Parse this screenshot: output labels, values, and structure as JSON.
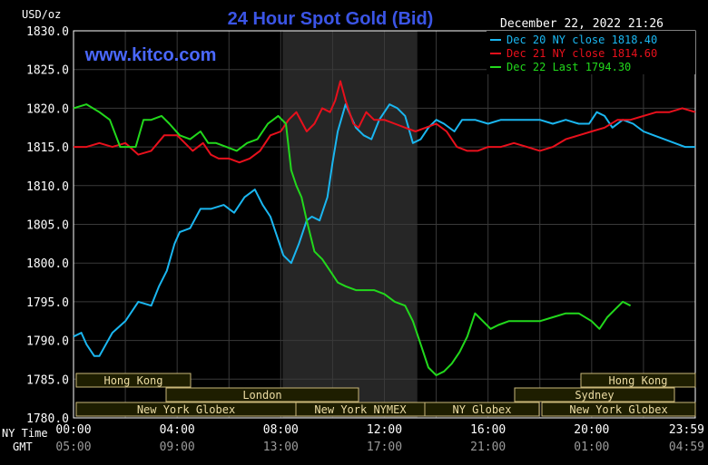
{
  "header": {
    "unit": "USD/oz",
    "title": "24 Hour Spot Gold (Bid)",
    "timestamp": "December 22, 2022 21:26",
    "website": "www.kitco.com"
  },
  "colors": {
    "background": "#000000",
    "title": "#3b55e6",
    "website": "#4a68ff",
    "text": "#ffffff",
    "grid": "#3a3a3a",
    "shade": "#262626",
    "market_fill": "#1e1e00",
    "market_border": "#c9b77a",
    "market_text": "#ecdca4"
  },
  "markets": {
    "row1": [
      "Hong Kong",
      "Hong Kong"
    ],
    "row2": [
      "London",
      "Sydney"
    ],
    "row3": [
      "New York Globex",
      "New York NYMEX",
      "NY Globex",
      "New York Globex"
    ]
  },
  "time_labels": {
    "ny_label": "NY Time",
    "gmt_label": "GMT"
  },
  "chart_data": {
    "type": "line",
    "title": "24 Hour Spot Gold (Bid)",
    "ylabel": "USD/oz",
    "ylim": [
      1780.0,
      1830.0
    ],
    "y_ticks": [
      "1830.0",
      "1825.0",
      "1820.0",
      "1815.0",
      "1810.0",
      "1805.0",
      "1800.0",
      "1795.0",
      "1790.0",
      "1785.0",
      "1780.0"
    ],
    "x_ticks_ny": [
      "00:00",
      "04:00",
      "08:00",
      "12:00",
      "16:00",
      "20:00",
      "23:59"
    ],
    "x_ticks_gmt": [
      "05:00",
      "09:00",
      "13:00",
      "17:00",
      "21:00",
      "01:00",
      "04:59"
    ],
    "xlim_hours": [
      0,
      24
    ],
    "grid": true,
    "legend_position": "top-right",
    "series": [
      {
        "name": "Dec 20 NY close 1818.40",
        "color": "#1ab6f0",
        "x": [
          0,
          0.3,
          0.5,
          0.8,
          1.0,
          1.5,
          2.0,
          2.5,
          3.0,
          3.3,
          3.6,
          3.9,
          4.1,
          4.5,
          4.9,
          5.3,
          5.8,
          6.2,
          6.6,
          7.0,
          7.3,
          7.6,
          7.9,
          8.1,
          8.4,
          8.7,
          9.0,
          9.2,
          9.5,
          9.8,
          10.0,
          10.2,
          10.5,
          10.9,
          11.2,
          11.5,
          11.8,
          12.2,
          12.5,
          12.8,
          13.1,
          13.4,
          13.7,
          14.0,
          14.3,
          14.7,
          15.0,
          15.5,
          16.0,
          16.5,
          17.0,
          17.5,
          18.0,
          18.5,
          19.0,
          19.5,
          19.9,
          20.2,
          20.5,
          20.8,
          21.2,
          21.6,
          22.0,
          22.4,
          22.8,
          23.2,
          23.6,
          24.0
        ],
        "y": [
          1790.5,
          1791.0,
          1789.5,
          1788.0,
          1788.0,
          1791.0,
          1792.5,
          1795.0,
          1794.5,
          1797.0,
          1799.0,
          1802.5,
          1804.0,
          1804.5,
          1807.0,
          1807.0,
          1807.5,
          1806.5,
          1808.5,
          1809.5,
          1807.5,
          1806.0,
          1803.0,
          1801.0,
          1800.0,
          1802.5,
          1805.5,
          1806.0,
          1805.5,
          1808.5,
          1813.0,
          1817.0,
          1820.5,
          1817.5,
          1816.5,
          1816.0,
          1818.5,
          1820.5,
          1820.0,
          1819.0,
          1815.5,
          1816.0,
          1817.5,
          1818.5,
          1818.0,
          1817.0,
          1818.5,
          1818.5,
          1818.0,
          1818.5,
          1818.5,
          1818.5,
          1818.5,
          1818.0,
          1818.5,
          1818.0,
          1818.0,
          1819.5,
          1819.0,
          1817.5,
          1818.5,
          1818.0,
          1817.0,
          1816.5,
          1816.0,
          1815.5,
          1815.0,
          1815.0
        ]
      },
      {
        "name": "Dec 21 NY close 1814.60",
        "color": "#e8101c",
        "x": [
          0,
          0.5,
          1.0,
          1.5,
          2.0,
          2.5,
          3.0,
          3.5,
          4.0,
          4.3,
          4.6,
          5.0,
          5.3,
          5.6,
          6.0,
          6.4,
          6.8,
          7.2,
          7.6,
          8.0,
          8.3,
          8.6,
          9.0,
          9.3,
          9.6,
          9.9,
          10.1,
          10.3,
          10.5,
          10.8,
          11.0,
          11.3,
          11.6,
          12.0,
          12.4,
          12.8,
          13.2,
          13.6,
          14.0,
          14.4,
          14.8,
          15.2,
          15.6,
          16.0,
          16.5,
          17.0,
          17.5,
          18.0,
          18.5,
          19.0,
          19.5,
          20.0,
          20.5,
          21.0,
          21.5,
          22.0,
          22.5,
          23.0,
          23.5,
          24.0
        ],
        "y": [
          1815.0,
          1815.0,
          1815.5,
          1815.0,
          1815.5,
          1814.0,
          1814.5,
          1816.5,
          1816.5,
          1815.5,
          1814.5,
          1815.5,
          1814.0,
          1813.5,
          1813.5,
          1813.0,
          1813.5,
          1814.5,
          1816.5,
          1817.0,
          1818.5,
          1819.5,
          1817.0,
          1818.0,
          1820.0,
          1819.5,
          1821.0,
          1823.5,
          1821.0,
          1818.0,
          1817.5,
          1819.5,
          1818.5,
          1818.5,
          1818.0,
          1817.5,
          1817.0,
          1817.5,
          1818.0,
          1817.0,
          1815.0,
          1814.5,
          1814.5,
          1815.0,
          1815.0,
          1815.5,
          1815.0,
          1814.5,
          1815.0,
          1816.0,
          1816.5,
          1817.0,
          1817.5,
          1818.5,
          1818.5,
          1819.0,
          1819.5,
          1819.5,
          1820.0,
          1819.5
        ]
      },
      {
        "name": "Dec 22 Last 1794.30",
        "color": "#22d81c",
        "x": [
          0,
          0.5,
          1.0,
          1.4,
          1.8,
          2.1,
          2.4,
          2.7,
          3.0,
          3.4,
          3.7,
          4.1,
          4.5,
          4.9,
          5.2,
          5.5,
          5.9,
          6.3,
          6.7,
          7.1,
          7.5,
          7.9,
          8.2,
          8.4,
          8.6,
          8.8,
          9.0,
          9.3,
          9.6,
          9.9,
          10.2,
          10.5,
          10.9,
          11.2,
          11.6,
          12.0,
          12.4,
          12.8,
          13.1,
          13.4,
          13.7,
          14.0,
          14.3,
          14.6,
          14.9,
          15.2,
          15.5,
          15.8,
          16.1,
          16.4,
          16.8,
          17.2,
          17.6,
          18.0,
          18.5,
          19.0,
          19.5,
          20.0,
          20.3,
          20.6,
          20.9,
          21.2,
          21.5
        ],
        "y": [
          1820.0,
          1820.5,
          1819.5,
          1818.5,
          1815.0,
          1815.0,
          1815.0,
          1818.5,
          1818.5,
          1819.0,
          1818.0,
          1816.5,
          1816.0,
          1817.0,
          1815.5,
          1815.5,
          1815.0,
          1814.5,
          1815.5,
          1816.0,
          1818.0,
          1819.0,
          1818.0,
          1812.0,
          1810.0,
          1808.5,
          1805.5,
          1801.5,
          1800.5,
          1799.0,
          1797.5,
          1797.0,
          1796.5,
          1796.5,
          1796.5,
          1796.0,
          1795.0,
          1794.5,
          1792.5,
          1789.5,
          1786.5,
          1785.5,
          1786.0,
          1787.0,
          1788.5,
          1790.5,
          1793.5,
          1792.5,
          1791.5,
          1792.0,
          1792.5,
          1792.5,
          1792.5,
          1792.5,
          1793.0,
          1793.5,
          1793.5,
          1792.5,
          1791.5,
          1793.0,
          1794.0,
          1795.0,
          1794.5
        ]
      }
    ]
  }
}
